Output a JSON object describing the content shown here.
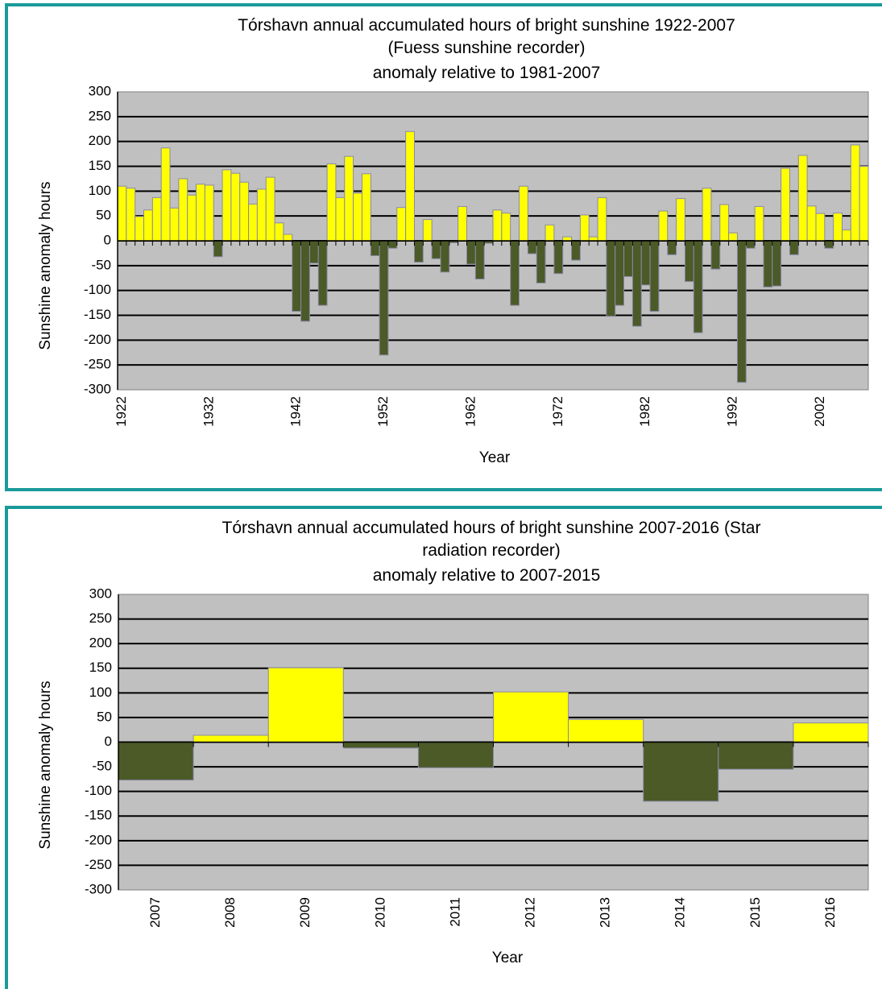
{
  "charts_colors": {
    "positive": "#ffff00",
    "negative": "#4b5a27",
    "bar_stroke": "#8a8aa8",
    "plot_bg": "#c0c0c0",
    "gridline": "#000000",
    "frame": "#1a9a9a"
  },
  "chart_data": [
    {
      "type": "bar",
      "title_lines": [
        "Tórshavn annual accumulated hours of bright sunshine  1922-2007",
        "(Fuess sunshine recorder)",
        "anomaly relative to 1981-2007"
      ],
      "xlabel": "Year",
      "ylabel": "Sunshine  anomaly hours",
      "ylim": [
        -300,
        300
      ],
      "yticks": [
        300,
        250,
        200,
        150,
        100,
        50,
        0,
        -50,
        -100,
        -150,
        -200,
        -250,
        -300
      ],
      "grid": true,
      "legend": "none",
      "x_start": 1922,
      "xtick_labels": [
        "1922",
        "1932",
        "1942",
        "1952",
        "1962",
        "1972",
        "1982",
        "1992",
        "2002"
      ],
      "values": [
        110,
        106,
        49,
        62,
        87,
        187,
        66,
        125,
        92,
        114,
        112,
        -32,
        143,
        136,
        118,
        74,
        104,
        128,
        36,
        13,
        -142,
        -162,
        -45,
        -130,
        155,
        87,
        170,
        96,
        135,
        -30,
        -230,
        -15,
        67,
        220,
        -43,
        43,
        -36,
        -63,
        -4,
        69,
        -47,
        -77,
        -5,
        62,
        56,
        -130,
        110,
        -26,
        -85,
        32,
        -66,
        8,
        -39,
        52,
        8,
        87,
        -152,
        -130,
        -72,
        -172,
        -89,
        -142,
        60,
        -28,
        85,
        -82,
        -185,
        106,
        -57,
        73,
        16,
        -285,
        -15,
        69,
        -93,
        -91,
        146,
        -28,
        172,
        70,
        55,
        -15,
        56,
        22,
        193,
        150
      ]
    },
    {
      "type": "bar",
      "title_lines": [
        "Tórshavn annual accumulated hours of bright sunshine  2007-2016 (Star",
        "radiation recorder)",
        "anomaly relative to 2007-2015"
      ],
      "xlabel": "Year",
      "ylabel": "Sunshine  anomaly hours",
      "ylim": [
        -300,
        300
      ],
      "yticks": [
        300,
        250,
        200,
        150,
        100,
        50,
        0,
        -50,
        -100,
        -150,
        -200,
        -250,
        -300
      ],
      "grid": true,
      "legend": "none",
      "categories": [
        "2007",
        "2008",
        "2009",
        "2010",
        "2011",
        "2012",
        "2013",
        "2014",
        "2015",
        "2016"
      ],
      "values": [
        -77,
        14,
        151,
        -12,
        -52,
        102,
        46,
        -120,
        -55,
        39
      ]
    }
  ]
}
